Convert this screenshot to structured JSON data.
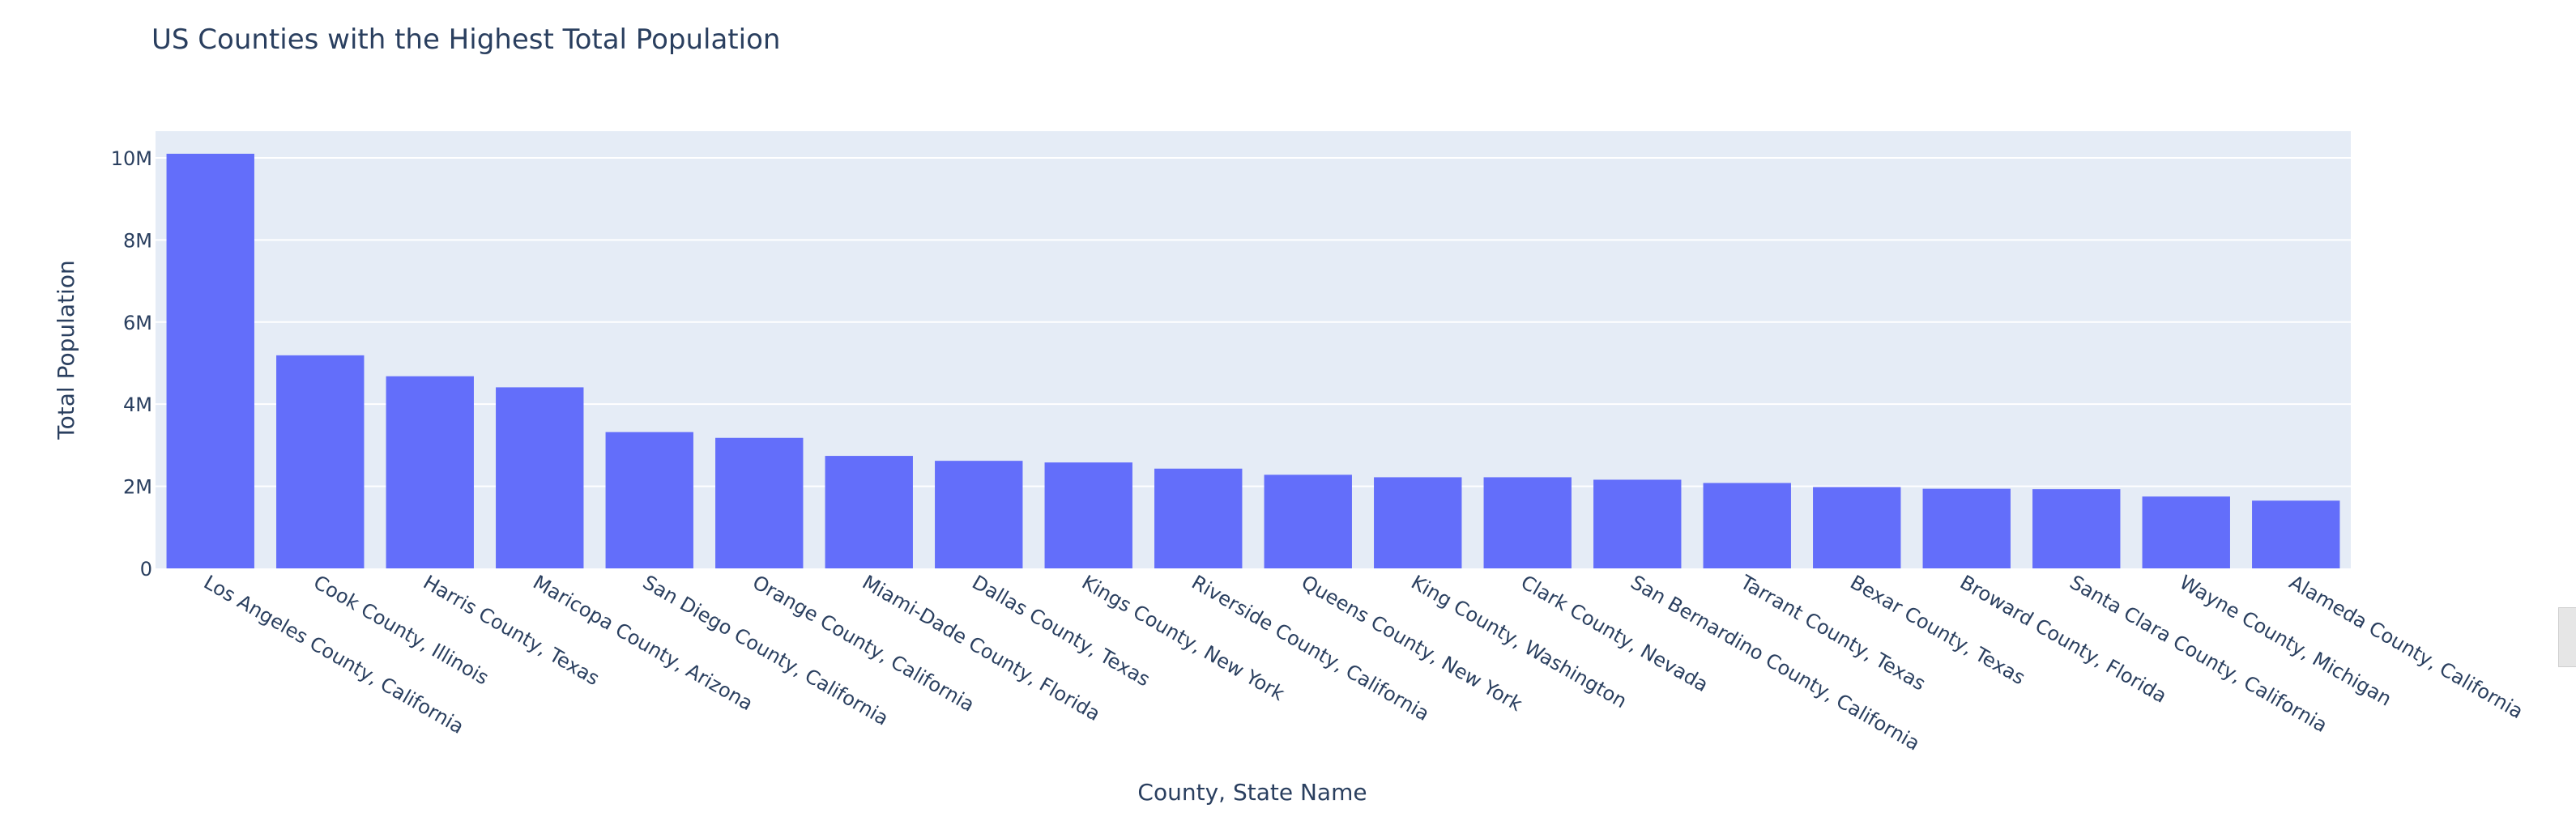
{
  "chart_data": {
    "type": "bar",
    "title": "US Counties with the Highest Total Population",
    "xlabel": "County, State Name",
    "ylabel": "Total Population",
    "ylim": [
      0,
      10650000
    ],
    "yticks": [
      0,
      2000000,
      4000000,
      6000000,
      8000000,
      10000000
    ],
    "ytick_labels": [
      "0",
      "2M",
      "4M",
      "6M",
      "8M",
      "10M"
    ],
    "grid": true,
    "bar_color": "#636efa",
    "plot_bg": "#e5ecf6",
    "categories": [
      "Los Angeles County, California",
      "Cook County, Illinois",
      "Harris County, Texas",
      "Maricopa County, Arizona",
      "San Diego County, California",
      "Orange County, California",
      "Miami-Dade County, Florida",
      "Dallas County, Texas",
      "Kings County, New York",
      "Riverside County, California",
      "Queens County, New York",
      "King County, Washington",
      "Clark County, Nevada",
      "San Bernardino County, California",
      "Tarrant County, Texas",
      "Bexar County, Texas",
      "Broward County, Florida",
      "Santa Clara County, California",
      "Wayne County, Michigan",
      "Alameda County, California"
    ],
    "values": [
      10100000,
      5190000,
      4680000,
      4410000,
      3320000,
      3180000,
      2740000,
      2620000,
      2580000,
      2430000,
      2280000,
      2220000,
      2220000,
      2160000,
      2080000,
      1980000,
      1940000,
      1930000,
      1750000,
      1650000
    ]
  }
}
